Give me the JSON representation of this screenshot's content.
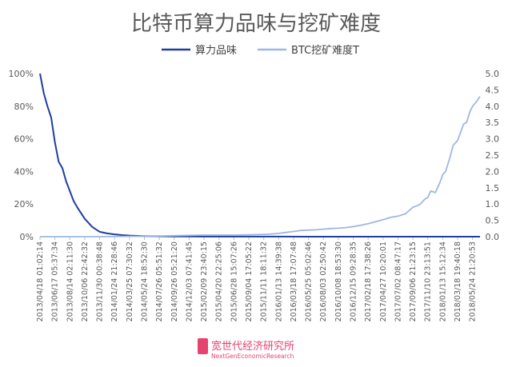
{
  "chart_data": {
    "type": "line",
    "title": "比特币算力品味与挖矿难度",
    "legend_position": "top-center",
    "grid": false,
    "xlabel": "",
    "ylabel": "",
    "y_left_ticks": [
      "0%",
      "20%",
      "40%",
      "60%",
      "80%",
      "100%"
    ],
    "y_left_range": [
      0,
      100
    ],
    "y_right_ticks": [
      "0.0",
      "0.5",
      "1.0",
      "1.5",
      "2.0",
      "2.5",
      "3.0",
      "3.5",
      "4.0",
      "4.5",
      "5.0"
    ],
    "y_right_range": [
      0,
      5
    ],
    "x_tick_labels": [
      "2013/04/18 01:02:14",
      "2013/06/17 05:37:34",
      "2013/08/14 02:11:30",
      "2013/10/06 22:42:32",
      "2013/11/30 00:38:48",
      "2014/01/24 21:28:46",
      "2014/03/25 07:30:32",
      "2014/05/24 18:52:30",
      "2014/07/26 05:51:32",
      "2014/09/26 05:21:20",
      "2014/12/03 07:41:45",
      "2015/02/09 23:40:15",
      "2015/04/20 22:25:06",
      "2015/06/28 15:07:26",
      "2015/09/04 17:05:22",
      "2015/11/11 18:11:32",
      "2016/01/13 14:39:38",
      "2016/03/18 17:07:48",
      "2016/05/25 05:02:46",
      "2016/08/03 02:50:42",
      "2016/10/08 18:53:30",
      "2016/12/15 09:28:35",
      "2017/02/18 17:38:26",
      "2017/04/27 10:20:01",
      "2017/07/02 08:47:17",
      "2017/09/06 21:23:15",
      "2017/11/10 23:13:51",
      "2018/01/13 15:12:34",
      "2018/03/18 19:40:18",
      "2018/05/24 21:20:53"
    ],
    "series": [
      {
        "name": "算力品味",
        "axis": "left",
        "color": "#1f3fa0",
        "x": [
          0,
          0.25,
          0.5,
          0.75,
          1,
          1.25,
          1.5,
          1.75,
          2,
          2.25,
          2.5,
          3,
          3.5,
          4,
          4.5,
          5,
          5.5,
          6,
          7,
          8,
          9,
          10,
          12,
          14,
          16,
          18,
          20,
          22,
          24,
          26,
          28,
          29.5
        ],
        "values": [
          100,
          88,
          80,
          73,
          58,
          46,
          42,
          34,
          28,
          22,
          18,
          11,
          6,
          3,
          2,
          1.4,
          1,
          0.7,
          0.4,
          0.25,
          0.15,
          0.1,
          0.06,
          0.04,
          0.03,
          0.02,
          0.02,
          0.01,
          0.01,
          0.01,
          0.01,
          0.01
        ]
      },
      {
        "name": "BTC挖矿难度T",
        "axis": "right",
        "color": "#9db7e3",
        "x": [
          0,
          2,
          4,
          6,
          8,
          9,
          10,
          11,
          12,
          13,
          14,
          15,
          15.5,
          16,
          16.5,
          17,
          17.5,
          18,
          18.5,
          19,
          19.5,
          20,
          20.5,
          21,
          21.5,
          22,
          22.5,
          23,
          23.5,
          24,
          24.5,
          24.8,
          25,
          25.3,
          25.5,
          25.8,
          26,
          26.2,
          26.5,
          26.8,
          27,
          27.2,
          27.5,
          27.7,
          28,
          28.2,
          28.4,
          28.6,
          28.8,
          29,
          29.2,
          29.5
        ],
        "values": [
          0.0,
          0.0,
          0.0,
          0.01,
          0.02,
          0.03,
          0.04,
          0.05,
          0.05,
          0.05,
          0.06,
          0.07,
          0.08,
          0.1,
          0.13,
          0.16,
          0.19,
          0.2,
          0.21,
          0.23,
          0.25,
          0.26,
          0.28,
          0.31,
          0.35,
          0.4,
          0.46,
          0.52,
          0.59,
          0.63,
          0.7,
          0.82,
          0.9,
          0.95,
          1.0,
          1.15,
          1.2,
          1.4,
          1.35,
          1.65,
          1.9,
          2.0,
          2.45,
          2.8,
          2.95,
          3.2,
          3.45,
          3.5,
          3.8,
          4.0,
          4.1,
          4.3
        ]
      }
    ]
  },
  "watermark": {
    "name": "宽世代经济研究所",
    "sub": "NextGenEconomicResearch",
    "color": "#e4456f"
  }
}
